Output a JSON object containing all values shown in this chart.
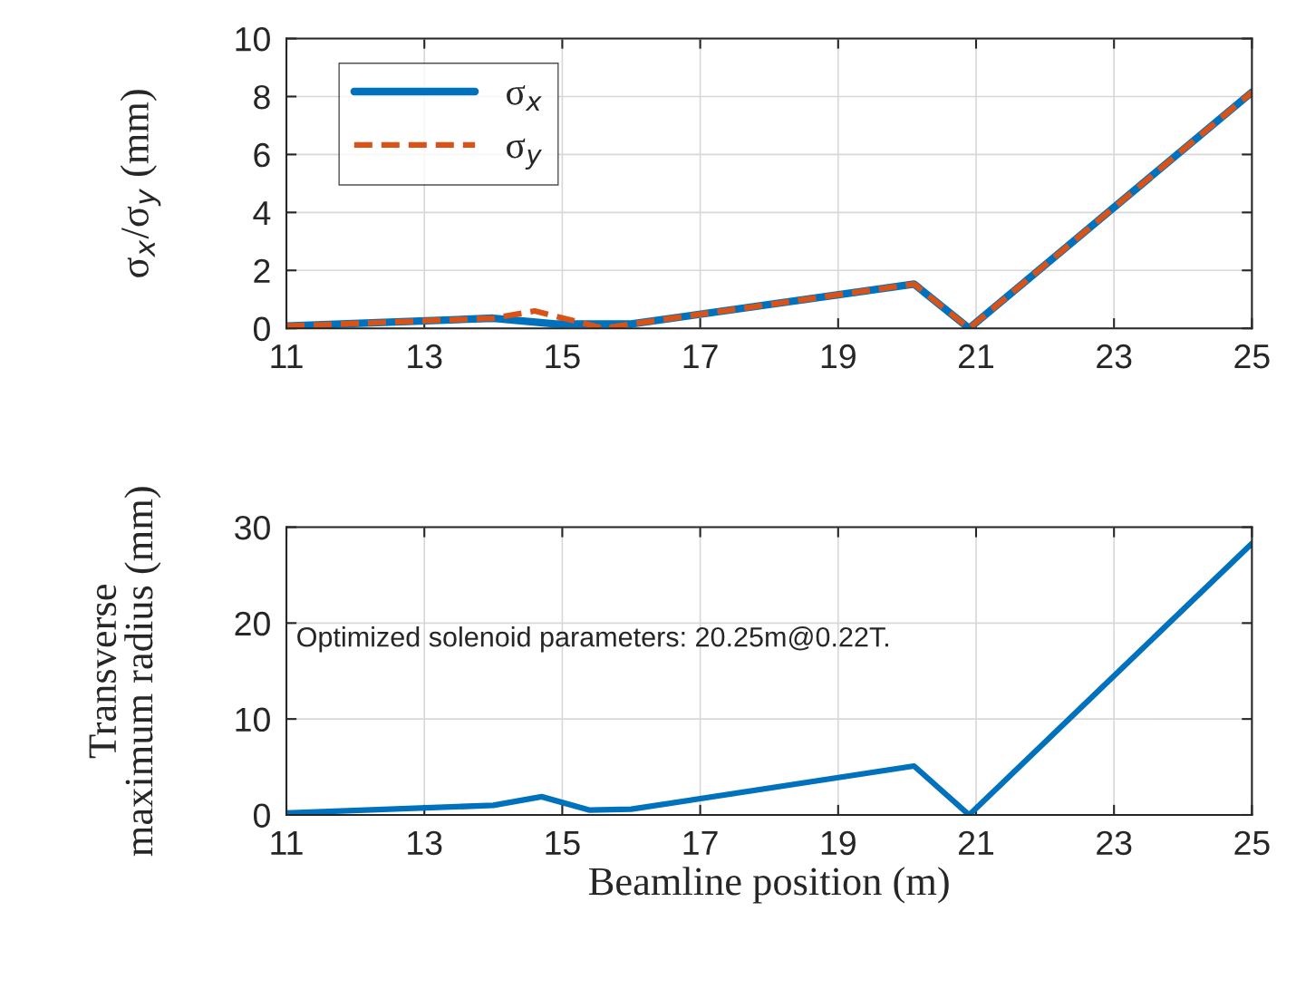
{
  "chart_data": [
    {
      "type": "line",
      "ylabel": "σ$_{x}$/σ$_{y}$ (mm)",
      "xlim": [
        11,
        25
      ],
      "xticks": [
        11,
        13,
        15,
        17,
        19,
        21,
        23,
        25
      ],
      "ylim": [
        0,
        10
      ],
      "yticks": [
        0,
        2,
        4,
        6,
        8,
        10
      ],
      "grid": true,
      "legend": "top left",
      "series": [
        {
          "name": "σ$_{x}$",
          "color": "#0072bd",
          "line_style": "solid",
          "x": [
            11,
            14,
            14.9,
            16,
            20.1,
            20.9,
            25
          ],
          "values": [
            0.08,
            0.35,
            0.15,
            0.15,
            1.53,
            0,
            8.15
          ]
        },
        {
          "name": "σ$_{y}$",
          "color": "#d95319",
          "line_style": "dashed",
          "x": [
            11,
            14,
            14.6,
            15.6,
            16,
            20.1,
            20.9,
            25
          ],
          "values": [
            0.08,
            0.35,
            0.6,
            0.0,
            0.15,
            1.53,
            0,
            8.15
          ]
        }
      ]
    },
    {
      "type": "line",
      "xlabel": "Beamline position (m)",
      "ylabel": "Transverse\nmaximum radius (mm)",
      "xlim": [
        11,
        25
      ],
      "xticks": [
        11,
        13,
        15,
        17,
        19,
        21,
        23,
        25
      ],
      "ylim": [
        0,
        30
      ],
      "yticks": [
        0,
        10,
        20,
        30
      ],
      "grid": true,
      "annotations": [
        "Optimized solenoid parameters: 20.25m@0.22T."
      ],
      "series": [
        {
          "color": "#0072bd",
          "line_style": "solid",
          "x": [
            11,
            14,
            14.7,
            15.4,
            16,
            20.1,
            20.9,
            25
          ],
          "values": [
            0.2,
            1.0,
            1.9,
            0.5,
            0.6,
            5.1,
            0,
            28.3
          ]
        }
      ]
    }
  ]
}
